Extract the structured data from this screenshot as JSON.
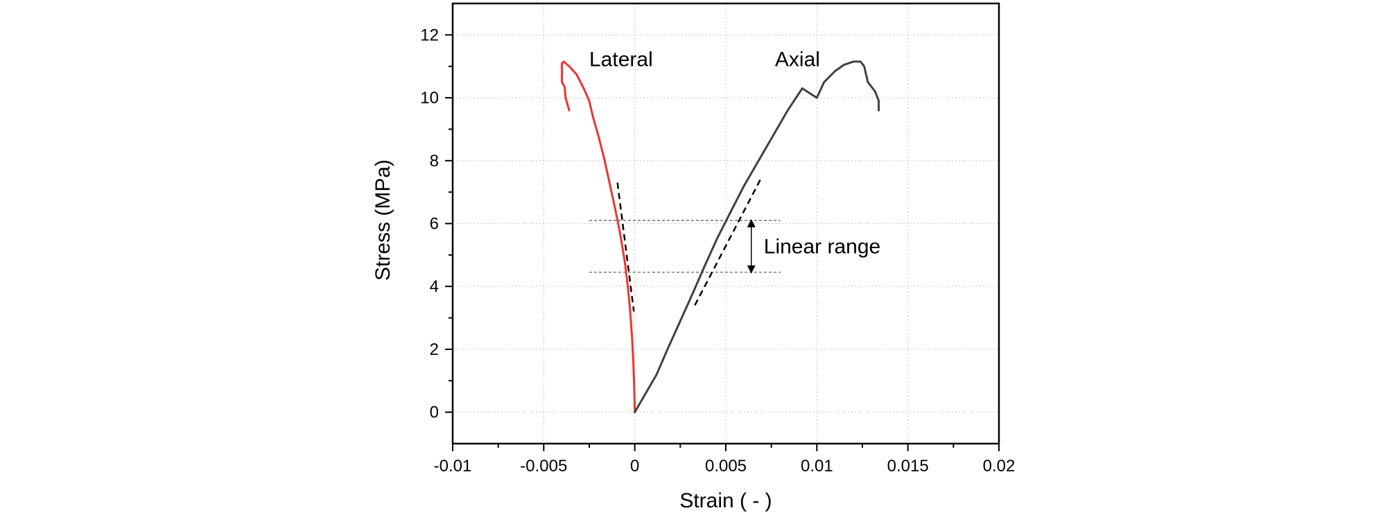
{
  "chart_data": {
    "type": "line",
    "xlabel": "Strain ( - )",
    "ylabel": "Stress (MPa)",
    "xlim": [
      -0.01,
      0.02
    ],
    "ylim": [
      -1,
      13
    ],
    "x_ticks": [
      -0.01,
      -0.005,
      0,
      0.005,
      0.01,
      0.015,
      0.02
    ],
    "x_tick_labels": [
      "-0.01",
      "-0.005",
      "0",
      "0.005",
      "0.01",
      "0.015",
      "0.02"
    ],
    "y_ticks": [
      0,
      2,
      4,
      6,
      8,
      10,
      12
    ],
    "y_tick_labels": [
      "0",
      "2",
      "4",
      "6",
      "8",
      "10",
      "12"
    ],
    "grid": true,
    "series": [
      {
        "name": "Lateral",
        "color": "#ee3333",
        "x": [
          0.0,
          -3e-05,
          -8e-05,
          -0.00015,
          -0.00025,
          -0.00038,
          -0.00055,
          -0.00078,
          -0.00105,
          -0.00135,
          -0.00165,
          -0.002,
          -0.0023,
          -0.0025,
          -0.0028,
          -0.0032,
          -0.0036,
          -0.0039,
          -0.004,
          -0.004,
          -0.00385,
          -0.0038,
          -0.0037,
          -0.0036
        ],
        "y": [
          0,
          0.8,
          1.6,
          2.4,
          3.2,
          4.0,
          4.8,
          5.6,
          6.4,
          7.2,
          8.0,
          8.8,
          9.4,
          9.9,
          10.3,
          10.75,
          11.0,
          11.15,
          11.1,
          10.5,
          10.35,
          10.0,
          9.8,
          9.6
        ]
      },
      {
        "name": "Axial",
        "color": "#404040",
        "x": [
          0.0,
          0.0005,
          0.0012,
          0.0018,
          0.0025,
          0.0032,
          0.0038,
          0.0045,
          0.0052,
          0.006,
          0.0068,
          0.0076,
          0.0084,
          0.0092,
          0.01,
          0.0104,
          0.011,
          0.0115,
          0.012,
          0.0124,
          0.0126,
          0.0128,
          0.0132,
          0.0134,
          0.0134
        ],
        "y": [
          0,
          0.5,
          1.2,
          2.0,
          2.9,
          3.8,
          4.6,
          5.5,
          6.3,
          7.2,
          8.0,
          8.8,
          9.6,
          10.3,
          10.0,
          10.5,
          10.85,
          11.05,
          11.15,
          11.15,
          11.0,
          10.5,
          10.2,
          9.9,
          9.6
        ]
      }
    ],
    "fit_lines": [
      {
        "name": "lateral-linear-fit",
        "x": [
          -0.00095,
          -5e-05
        ],
        "y": [
          7.3,
          3.2
        ]
      },
      {
        "name": "axial-linear-fit",
        "x": [
          0.0033,
          0.0069
        ],
        "y": [
          3.4,
          7.4
        ]
      }
    ],
    "linear_range": {
      "label": "Linear range",
      "y_low": 4.45,
      "y_high": 6.1,
      "x_start": -0.0025,
      "x_end": 0.008,
      "arrow_x": 0.0064
    },
    "annotations": [
      {
        "text": "Lateral",
        "x": -0.0025,
        "y": 11.0
      },
      {
        "text": "Axial",
        "x": 0.0077,
        "y": 11.0
      }
    ]
  }
}
